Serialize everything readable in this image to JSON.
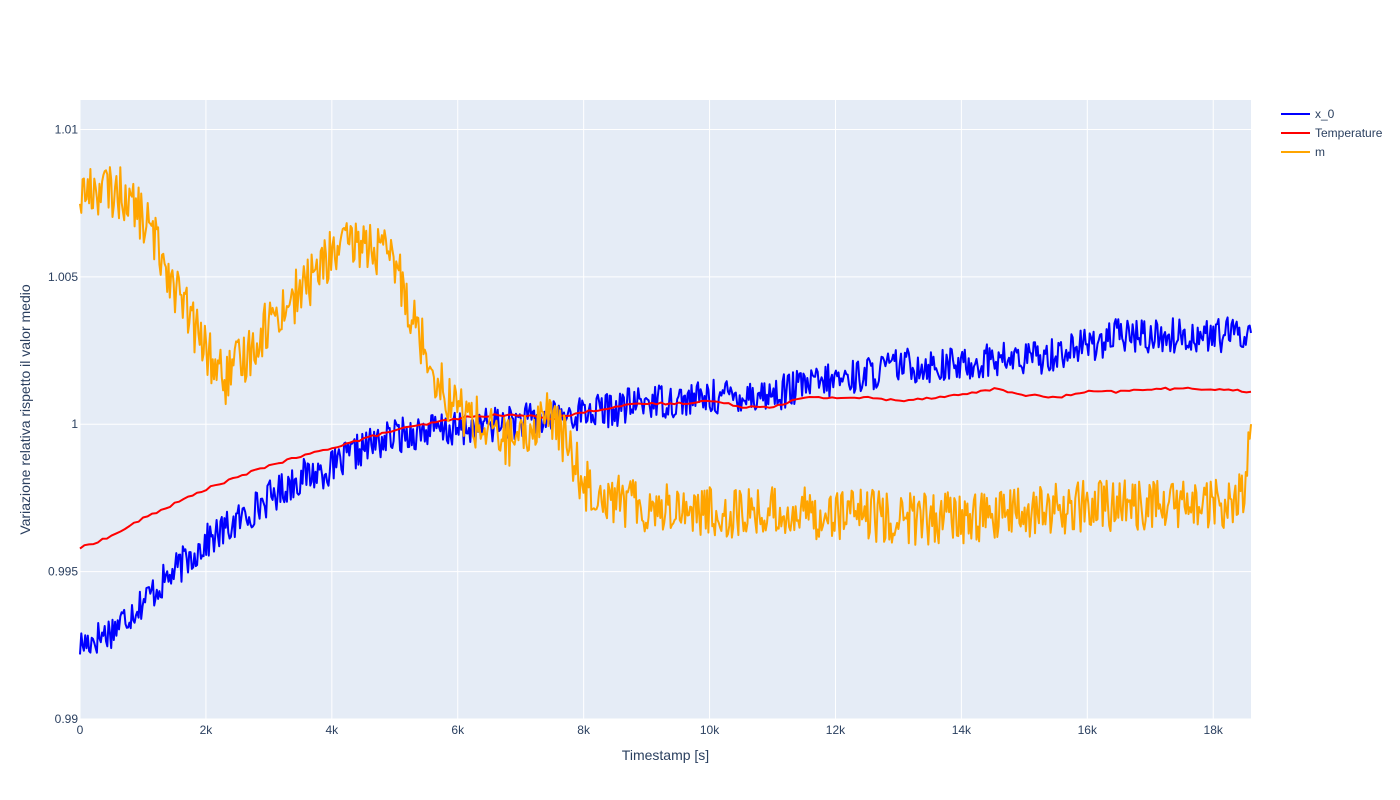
{
  "chart_data": {
    "type": "line",
    "xlabel": "Timestamp [s]",
    "ylabel": "Variazione relativa rispetto il valor medio",
    "xlim": [
      0,
      18600
    ],
    "ylim": [
      0.99,
      1.011
    ],
    "x_ticks": [
      0,
      2000,
      4000,
      6000,
      8000,
      10000,
      12000,
      14000,
      16000,
      18000
    ],
    "x_tick_labels": [
      "0",
      "2k",
      "4k",
      "6k",
      "8k",
      "10k",
      "12k",
      "14k",
      "16k",
      "18k"
    ],
    "y_ticks": [
      0.99,
      0.995,
      1.0,
      1.005,
      1.01
    ],
    "y_tick_labels": [
      "0.99",
      "0.995",
      "1",
      "1.005",
      "1.01"
    ],
    "grid": true,
    "legend_position": "top-right",
    "series": [
      {
        "name": "x_0",
        "color": "#0000ff",
        "noise_amplitude": 0.0012,
        "points": [
          [
            0,
            0.9925
          ],
          [
            500,
            0.993
          ],
          [
            1000,
            0.994
          ],
          [
            1500,
            0.995
          ],
          [
            2000,
            0.996
          ],
          [
            2500,
            0.9967
          ],
          [
            3000,
            0.9975
          ],
          [
            3500,
            0.9982
          ],
          [
            4000,
            0.9985
          ],
          [
            4500,
            0.9992
          ],
          [
            5000,
            0.9996
          ],
          [
            5500,
            0.9998
          ],
          [
            6000,
            0.9998
          ],
          [
            6500,
            1.0
          ],
          [
            7000,
            1.0001
          ],
          [
            7500,
            1.0002
          ],
          [
            8000,
            1.0004
          ],
          [
            8500,
            1.0005
          ],
          [
            9000,
            1.0008
          ],
          [
            9500,
            1.0008
          ],
          [
            10000,
            1.0009
          ],
          [
            10500,
            1.001
          ],
          [
            11000,
            1.001
          ],
          [
            11500,
            1.0013
          ],
          [
            12000,
            1.0015
          ],
          [
            12500,
            1.0017
          ],
          [
            13000,
            1.002
          ],
          [
            13500,
            1.002
          ],
          [
            14000,
            1.002
          ],
          [
            14500,
            1.0022
          ],
          [
            15000,
            1.0022
          ],
          [
            15500,
            1.0024
          ],
          [
            16000,
            1.0027
          ],
          [
            16500,
            1.003
          ],
          [
            17000,
            1.003
          ],
          [
            17500,
            1.003
          ],
          [
            18000,
            1.003
          ],
          [
            18600,
            1.0031
          ]
        ]
      },
      {
        "name": "Temperature",
        "color": "#ff0000",
        "noise_amplitude": 8e-05,
        "points": [
          [
            0,
            0.9958
          ],
          [
            500,
            0.9962
          ],
          [
            1000,
            0.9968
          ],
          [
            1500,
            0.9973
          ],
          [
            2000,
            0.9978
          ],
          [
            2500,
            0.9982
          ],
          [
            3000,
            0.9986
          ],
          [
            3500,
            0.9989
          ],
          [
            4000,
            0.9992
          ],
          [
            4500,
            0.9995
          ],
          [
            5000,
            0.9998
          ],
          [
            5500,
            1.0
          ],
          [
            6000,
            1.0002
          ],
          [
            6500,
            1.0003
          ],
          [
            7000,
            1.0003
          ],
          [
            7500,
            1.0002
          ],
          [
            8000,
            1.0004
          ],
          [
            8500,
            1.0006
          ],
          [
            9000,
            1.0007
          ],
          [
            9500,
            1.0007
          ],
          [
            10000,
            1.0008
          ],
          [
            10500,
            1.0006
          ],
          [
            11000,
            1.0006
          ],
          [
            11500,
            1.0009
          ],
          [
            12000,
            1.0009
          ],
          [
            12500,
            1.0009
          ],
          [
            13000,
            1.0008
          ],
          [
            13500,
            1.0009
          ],
          [
            14000,
            1.001
          ],
          [
            14500,
            1.0012
          ],
          [
            15000,
            1.001
          ],
          [
            15500,
            1.0009
          ],
          [
            16000,
            1.0011
          ],
          [
            16500,
            1.0011
          ],
          [
            17000,
            1.0012
          ],
          [
            17500,
            1.0012
          ],
          [
            18000,
            1.0012
          ],
          [
            18600,
            1.0011
          ]
        ]
      },
      {
        "name": "m",
        "color": "#ffa500",
        "noise_amplitude": 0.0018,
        "points": [
          [
            0,
            1.0078
          ],
          [
            300,
            1.008
          ],
          [
            700,
            1.0078
          ],
          [
            1000,
            1.007
          ],
          [
            1300,
            1.0058
          ],
          [
            1600,
            1.0042
          ],
          [
            2000,
            1.0025
          ],
          [
            2300,
            1.0015
          ],
          [
            2600,
            1.0022
          ],
          [
            3000,
            1.0035
          ],
          [
            3500,
            1.0045
          ],
          [
            4000,
            1.0058
          ],
          [
            4500,
            1.0062
          ],
          [
            5000,
            1.0055
          ],
          [
            5400,
            1.003
          ],
          [
            5800,
            1.001
          ],
          [
            6200,
            1.0002
          ],
          [
            6600,
            0.9996
          ],
          [
            7000,
            0.9993
          ],
          [
            7400,
            1.0005
          ],
          [
            7700,
            0.9995
          ],
          [
            8000,
            0.998
          ],
          [
            8500,
            0.9975
          ],
          [
            9000,
            0.9972
          ],
          [
            9500,
            0.9972
          ],
          [
            10000,
            0.997
          ],
          [
            11000,
            0.997
          ],
          [
            12000,
            0.997
          ],
          [
            13000,
            0.9968
          ],
          [
            14000,
            0.9968
          ],
          [
            15000,
            0.997
          ],
          [
            16000,
            0.9972
          ],
          [
            17000,
            0.9973
          ],
          [
            18000,
            0.9972
          ],
          [
            18500,
            0.9975
          ],
          [
            18600,
            1.0
          ]
        ]
      }
    ]
  }
}
